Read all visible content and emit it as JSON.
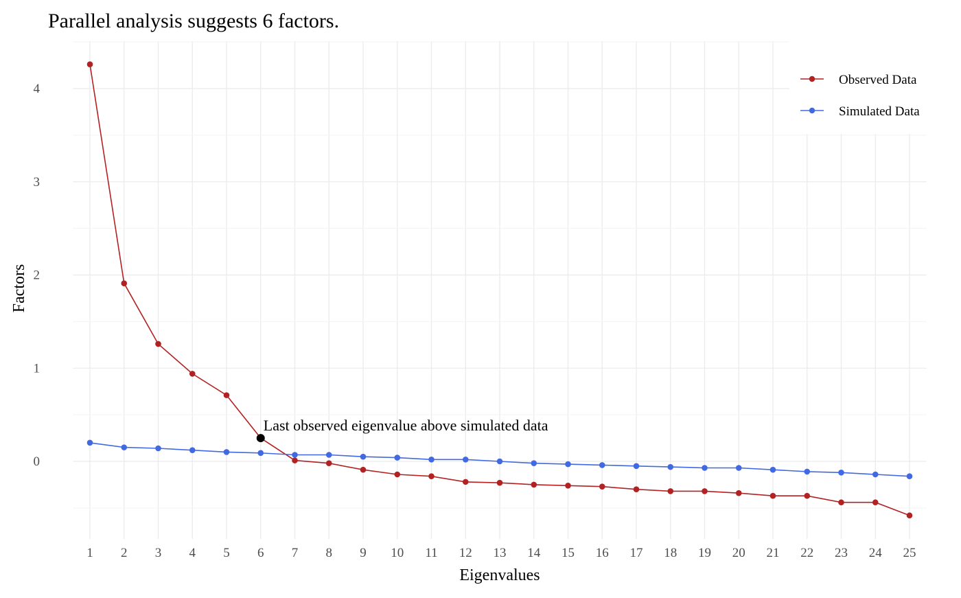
{
  "chart_data": {
    "type": "line",
    "title": "Parallel analysis suggests 6 factors.",
    "xlabel": "Eigenvalues",
    "ylabel": "Factors",
    "x": [
      1,
      2,
      3,
      4,
      5,
      6,
      7,
      8,
      9,
      10,
      11,
      12,
      13,
      14,
      15,
      16,
      17,
      18,
      19,
      20,
      21,
      22,
      23,
      24,
      25
    ],
    "xticks": [
      "1",
      "2",
      "3",
      "4",
      "5",
      "6",
      "7",
      "8",
      "9",
      "10",
      "11",
      "12",
      "13",
      "14",
      "15",
      "16",
      "17",
      "18",
      "19",
      "20",
      "21",
      "22",
      "23",
      "24",
      "25"
    ],
    "yticks": [
      0,
      1,
      2,
      3,
      4
    ],
    "ytick_labels": [
      "0",
      "1",
      "2",
      "3",
      "4"
    ],
    "ylim": [
      -0.8,
      4.5
    ],
    "xlim": [
      0.5,
      25.5
    ],
    "grid": true,
    "legend_position": "top-right",
    "series": [
      {
        "name": "Observed Data",
        "color": "#B22222",
        "values": [
          4.26,
          1.91,
          1.26,
          0.94,
          0.71,
          0.25,
          0.01,
          -0.02,
          -0.09,
          -0.14,
          -0.16,
          -0.22,
          -0.23,
          -0.25,
          -0.26,
          -0.27,
          -0.3,
          -0.32,
          -0.32,
          -0.34,
          -0.37,
          -0.37,
          -0.44,
          -0.44,
          -0.58
        ]
      },
      {
        "name": "Simulated Data",
        "color": "#4169E1",
        "values": [
          0.2,
          0.15,
          0.14,
          0.12,
          0.1,
          0.09,
          0.07,
          0.07,
          0.05,
          0.04,
          0.02,
          0.02,
          0.0,
          -0.02,
          -0.03,
          -0.04,
          -0.05,
          -0.06,
          -0.07,
          -0.07,
          -0.09,
          -0.11,
          -0.12,
          -0.14,
          -0.16
        ]
      }
    ],
    "annotation": {
      "text": "Last observed eigenvalue above simulated data",
      "x": 6,
      "y": 0.25,
      "color": "#000000"
    }
  }
}
